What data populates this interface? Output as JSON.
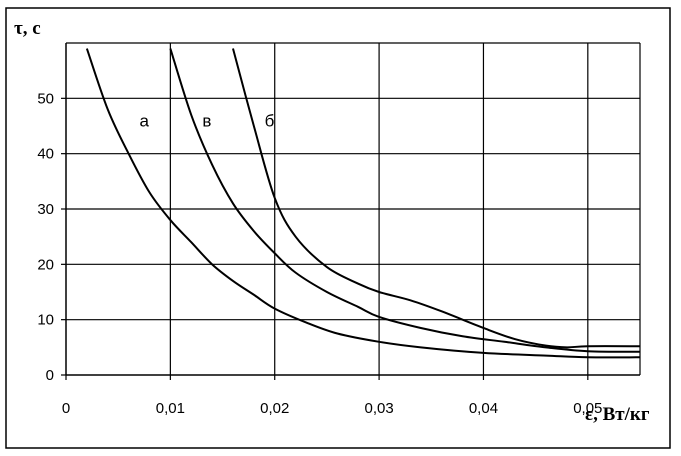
{
  "chart_data": {
    "type": "line",
    "title": "",
    "ylabel": "τ, с",
    "xlabel": "ε, Вт/кг",
    "xlim": [
      0,
      0.055
    ],
    "ylim": [
      0,
      60
    ],
    "grid": true,
    "x_ticks": [
      {
        "value": 0,
        "label": "0"
      },
      {
        "value": 0.01,
        "label": "0,01"
      },
      {
        "value": 0.02,
        "label": "0,02"
      },
      {
        "value": 0.03,
        "label": "0,03"
      },
      {
        "value": 0.04,
        "label": "0,04"
      },
      {
        "value": 0.05,
        "label": "0,05"
      }
    ],
    "y_ticks": [
      {
        "value": 0,
        "label": "0"
      },
      {
        "value": 10,
        "label": "10"
      },
      {
        "value": 20,
        "label": "20"
      },
      {
        "value": 30,
        "label": "30"
      },
      {
        "value": 40,
        "label": "40"
      },
      {
        "value": 50,
        "label": "50"
      }
    ],
    "series": [
      {
        "name": "а",
        "label_at": [
          0.0075,
          46
        ],
        "points": [
          [
            0.002,
            59
          ],
          [
            0.004,
            48
          ],
          [
            0.006,
            40
          ],
          [
            0.008,
            33
          ],
          [
            0.01,
            28
          ],
          [
            0.012,
            24
          ],
          [
            0.014,
            20
          ],
          [
            0.016,
            17
          ],
          [
            0.018,
            14.5
          ],
          [
            0.02,
            12
          ],
          [
            0.023,
            9.5
          ],
          [
            0.026,
            7.5
          ],
          [
            0.03,
            6
          ],
          [
            0.034,
            5
          ],
          [
            0.04,
            4
          ],
          [
            0.046,
            3.5
          ],
          [
            0.05,
            3.2
          ],
          [
            0.055,
            3.2
          ]
        ]
      },
      {
        "name": "в",
        "label_at": [
          0.0135,
          46
        ],
        "points": [
          [
            0.01,
            59
          ],
          [
            0.012,
            47
          ],
          [
            0.014,
            38
          ],
          [
            0.016,
            31
          ],
          [
            0.018,
            26
          ],
          [
            0.02,
            22
          ],
          [
            0.022,
            18.5
          ],
          [
            0.025,
            15
          ],
          [
            0.028,
            12.3
          ],
          [
            0.03,
            10.5
          ],
          [
            0.034,
            8.5
          ],
          [
            0.038,
            7
          ],
          [
            0.042,
            6
          ],
          [
            0.046,
            5
          ],
          [
            0.05,
            4.3
          ],
          [
            0.055,
            4.2
          ]
        ]
      },
      {
        "name": "б",
        "label_at": [
          0.0195,
          46
        ],
        "points": [
          [
            0.016,
            59
          ],
          [
            0.018,
            45
          ],
          [
            0.02,
            32
          ],
          [
            0.022,
            25
          ],
          [
            0.025,
            19.5
          ],
          [
            0.028,
            16.5
          ],
          [
            0.03,
            15
          ],
          [
            0.033,
            13.5
          ],
          [
            0.036,
            11.5
          ],
          [
            0.04,
            8.5
          ],
          [
            0.043,
            6.5
          ],
          [
            0.046,
            5.3
          ],
          [
            0.048,
            5
          ],
          [
            0.05,
            5.2
          ],
          [
            0.055,
            5.2
          ]
        ]
      }
    ]
  }
}
